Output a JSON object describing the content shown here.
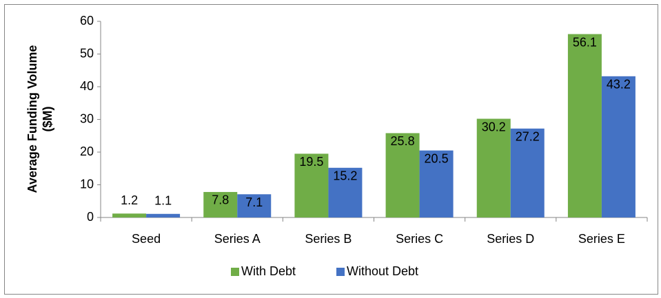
{
  "chart_data": {
    "type": "bar",
    "y_label": [
      "Average Funding Volume",
      "($M)"
    ],
    "categories": [
      "Seed",
      "Series A",
      "Series B",
      "Series C",
      "Series D",
      "Series E"
    ],
    "series": [
      {
        "name": "With Debt",
        "color": "#70ad47",
        "values": [
          1.2,
          7.8,
          19.5,
          25.8,
          30.2,
          56.1
        ]
      },
      {
        "name": "Without Debt",
        "color": "#4472c4",
        "values": [
          1.1,
          7.1,
          15.2,
          20.5,
          27.2,
          43.2
        ]
      }
    ],
    "ylim": [
      0,
      60
    ],
    "yticks": [
      0,
      10,
      20,
      30,
      40,
      50,
      60
    ],
    "grid": false,
    "legend": "bottom"
  }
}
